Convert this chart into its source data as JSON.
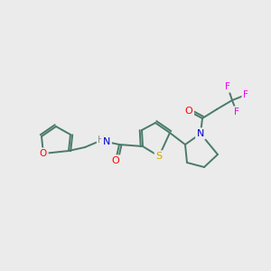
{
  "background_color": "#ebebeb",
  "bond_color": "#4a7a6a",
  "atom_colors": {
    "O": "#ff0000",
    "S": "#ccaa00",
    "N": "#0000cc",
    "F": "#ee00ee",
    "C": "#4a7a6a",
    "H": "#888888"
  },
  "figsize": [
    3.0,
    3.0
  ],
  "dpi": 100
}
